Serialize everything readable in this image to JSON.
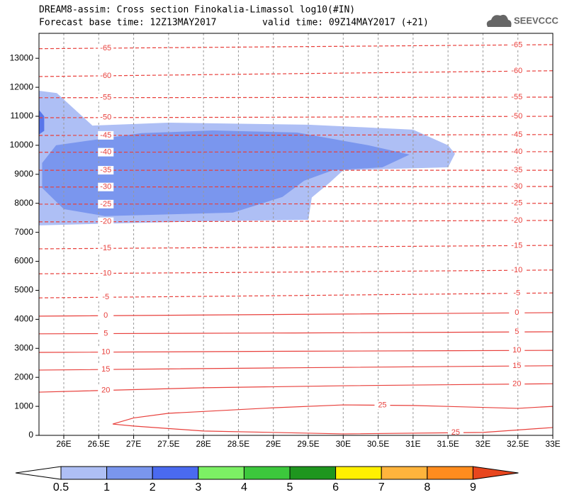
{
  "chart_data": {
    "type": "contour",
    "title": "DREAM8-assim: Cross section Finokalia-Limassol log10(#IN)",
    "subtitle_left": "Forecast base time: 12Z13MAY2017",
    "subtitle_right": "valid time: 09Z14MAY2017 (+21)",
    "logo": "SEEVCCC",
    "xlim": [
      25.645,
      33
    ],
    "ylim": [
      0,
      13860
    ],
    "xticks": [
      {
        "value": 26,
        "label": "26E"
      },
      {
        "value": 26.5,
        "label": "26.5E"
      },
      {
        "value": 27,
        "label": "27E"
      },
      {
        "value": 27.5,
        "label": "27.5E"
      },
      {
        "value": 28,
        "label": "28E"
      },
      {
        "value": 28.5,
        "label": "28.5E"
      },
      {
        "value": 29,
        "label": "29E"
      },
      {
        "value": 29.5,
        "label": "29.5E"
      },
      {
        "value": 30,
        "label": "30E"
      },
      {
        "value": 30.5,
        "label": "30.5E"
      },
      {
        "value": 31,
        "label": "31E"
      },
      {
        "value": 31.5,
        "label": "31.5E"
      },
      {
        "value": 32,
        "label": "32E"
      },
      {
        "value": 32.5,
        "label": "32.5E"
      },
      {
        "value": 33,
        "label": "33E"
      }
    ],
    "yticks": [
      0,
      1000,
      2000,
      3000,
      4000,
      5000,
      6000,
      7000,
      8000,
      9000,
      10000,
      11000,
      12000,
      13000
    ],
    "grid": true,
    "shading": [
      {
        "color": "#aebff5",
        "lon": [
          25.645,
          25.9,
          26.41,
          27.5,
          29.5,
          31.0,
          31.5,
          31.6,
          31.5,
          30.0,
          29.8,
          29.55,
          29.5,
          28.0,
          25.645
        ],
        "height": [
          11880,
          11800,
          10680,
          10780,
          10710,
          10540,
          10000,
          9710,
          9240,
          9140,
          8700,
          8200,
          7430,
          7380,
          7240
        ]
      },
      {
        "color": "#7a96ee",
        "lon": [
          25.69,
          25.89,
          27.11,
          28.13,
          29.34,
          30.36,
          30.95,
          30.56,
          29.85,
          29.44,
          29.13,
          28.42,
          26.59,
          26.0,
          25.69
        ],
        "height": [
          9390,
          10000,
          10420,
          10510,
          10440,
          10000,
          9680,
          9240,
          9140,
          8780,
          8220,
          7680,
          7560,
          7800,
          8530
        ]
      },
      {
        "color": "#5876ea",
        "lon": [
          25.645,
          25.72,
          25.72,
          25.645
        ],
        "height": [
          11220,
          11000,
          10500,
          10370
        ]
      }
    ],
    "contours": [
      {
        "level": -65,
        "color": "#e8403c",
        "dashed": true,
        "lon": [
          25.645,
          29.3,
          33
        ],
        "height": [
          13330,
          13400,
          13470
        ]
      },
      {
        "level": -60,
        "color": "#e8403c",
        "dashed": true,
        "lon": [
          25.645,
          29.3,
          33
        ],
        "height": [
          12370,
          12470,
          12570
        ]
      },
      {
        "level": -55,
        "color": "#e8403c",
        "dashed": true,
        "lon": [
          25.645,
          29.3,
          33
        ],
        "height": [
          11640,
          11650,
          11660
        ]
      },
      {
        "level": -50,
        "color": "#e8403c",
        "dashed": true,
        "lon": [
          25.645,
          29.3,
          33
        ],
        "height": [
          10950,
          10970,
          11000
        ]
      },
      {
        "level": -45,
        "color": "#e8403c",
        "dashed": true,
        "lon": [
          25.645,
          29.3,
          33
        ],
        "height": [
          10340,
          10350,
          10370
        ]
      },
      {
        "level": -40,
        "color": "#e8403c",
        "dashed": true,
        "lon": [
          25.645,
          29.3,
          33
        ],
        "height": [
          9760,
          9770,
          9780
        ]
      },
      {
        "level": -35,
        "color": "#e8403c",
        "dashed": true,
        "lon": [
          25.645,
          29.3,
          33
        ],
        "height": [
          9140,
          9140,
          9140
        ]
      },
      {
        "level": -30,
        "color": "#e8403c",
        "dashed": true,
        "lon": [
          25.645,
          29.3,
          33
        ],
        "height": [
          8560,
          8570,
          8580
        ]
      },
      {
        "level": -25,
        "color": "#e8403c",
        "dashed": true,
        "lon": [
          25.645,
          29.3,
          33
        ],
        "height": [
          7970,
          7980,
          8000
        ]
      },
      {
        "level": -20,
        "color": "#e8403c",
        "dashed": true,
        "lon": [
          25.645,
          29.3,
          33
        ],
        "height": [
          7360,
          7380,
          7410
        ]
      },
      {
        "level": -15,
        "color": "#e8403c",
        "dashed": true,
        "lon": [
          25.645,
          29.3,
          33
        ],
        "height": [
          6430,
          6490,
          6550
        ]
      },
      {
        "level": -10,
        "color": "#e8403c",
        "dashed": true,
        "lon": [
          25.645,
          29.3,
          33
        ],
        "height": [
          5570,
          5630,
          5700
        ]
      },
      {
        "level": -5,
        "color": "#e8403c",
        "dashed": true,
        "lon": [
          25.645,
          29.3,
          33
        ],
        "height": [
          4740,
          4820,
          4910
        ]
      },
      {
        "level": 0,
        "color": "#e8403c",
        "dashed": false,
        "lon": [
          25.645,
          29.3,
          33
        ],
        "height": [
          4110,
          4170,
          4230
        ]
      },
      {
        "level": 5,
        "color": "#e8403c",
        "dashed": false,
        "lon": [
          25.645,
          29.3,
          33
        ],
        "height": [
          3500,
          3530,
          3570
        ]
      },
      {
        "level": 10,
        "color": "#e8403c",
        "dashed": false,
        "lon": [
          25.645,
          29.3,
          33
        ],
        "height": [
          2860,
          2900,
          2930
        ]
      },
      {
        "level": 15,
        "color": "#e8403c",
        "dashed": false,
        "lon": [
          25.645,
          29.3,
          33
        ],
        "height": [
          2250,
          2330,
          2400
        ]
      },
      {
        "level": 20,
        "color": "#e8403c",
        "dashed": false,
        "lon": [
          25.645,
          28.0,
          30.0,
          33
        ],
        "height": [
          1490,
          1640,
          1710,
          1780
        ]
      },
      {
        "level": 25,
        "color": "#e8403c",
        "dashed": false,
        "lon": [
          26.7,
          27.0,
          27.5,
          29.0,
          30.0,
          31.0,
          32.5,
          33,
          33,
          32.0,
          30.0,
          28.0,
          27.0,
          26.7
        ],
        "height": [
          390,
          600,
          760,
          950,
          1050,
          1030,
          930,
          1000,
          270,
          100,
          50,
          150,
          320,
          390
        ]
      }
    ],
    "colorbar": {
      "levels": [
        0.5,
        1,
        2,
        3,
        4,
        5,
        6,
        7,
        8,
        9
      ],
      "colors": [
        "#ffffff",
        "#aebff5",
        "#7a96ee",
        "#4a6af0",
        "#7cf064",
        "#3cc83c",
        "#1e961e",
        "#fff000",
        "#ffb43c",
        "#ff8c1e",
        "#e8461e"
      ]
    }
  }
}
